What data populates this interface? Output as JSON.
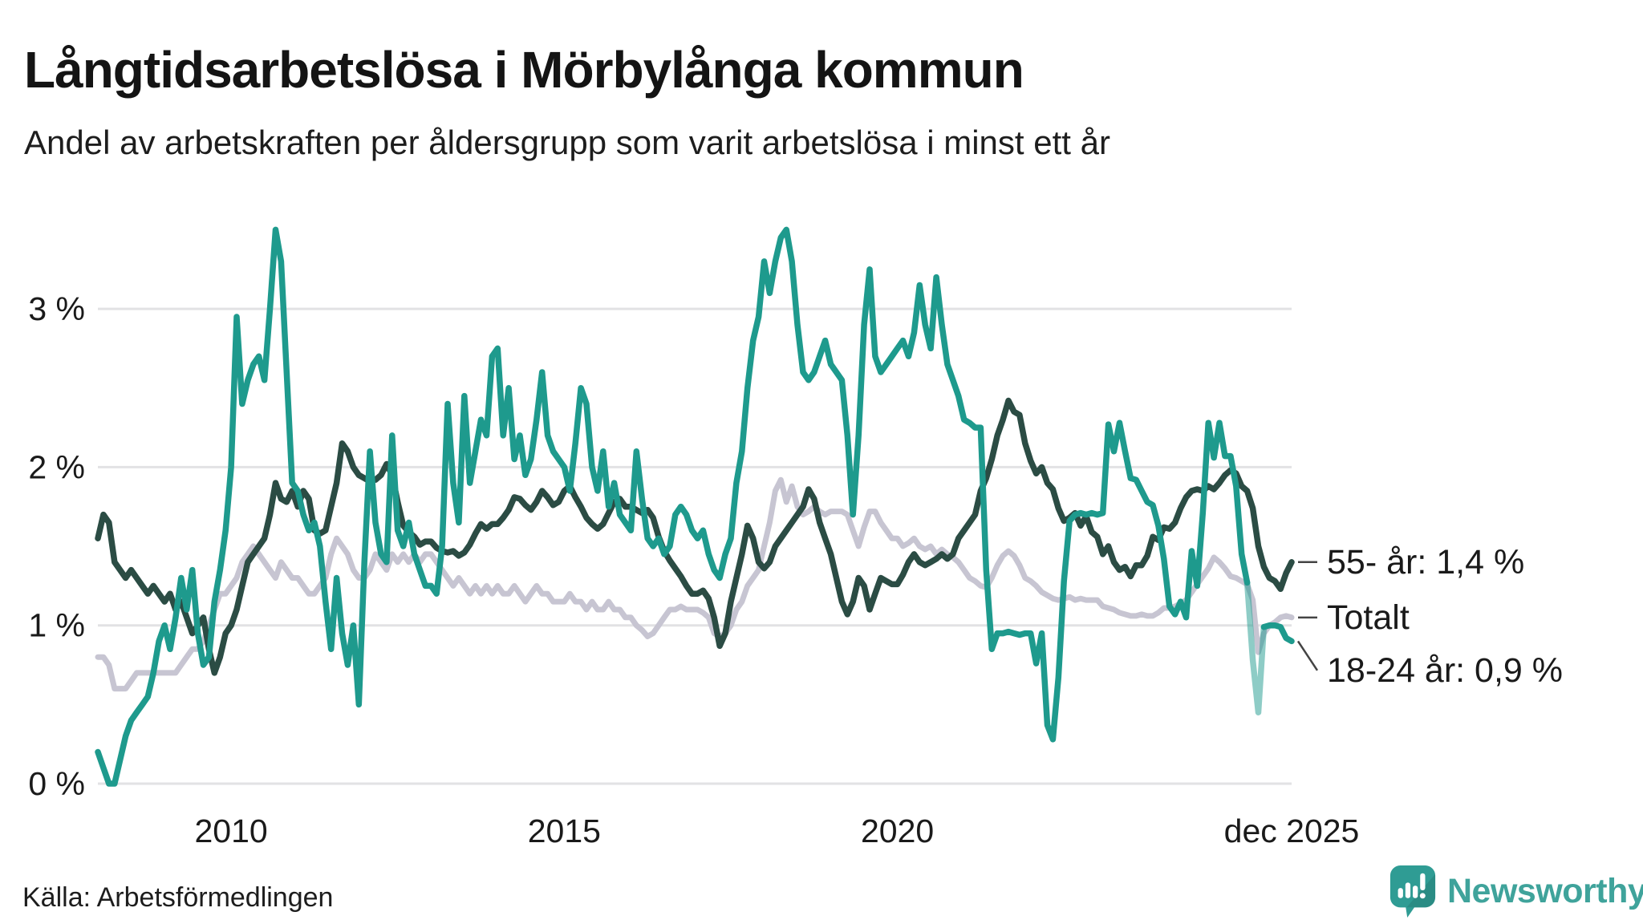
{
  "title": "Långtidsarbetslösa i Mörbylånga kommun",
  "subtitle": "Andel av arbetskraften per åldersgrupp som varit arbetslösa i minst ett år",
  "source": "Källa: Arbetsförmedlingen",
  "branding": {
    "name": "Newsworthy",
    "bubble_color": "#2f9c94",
    "text_color": "#3fa39b"
  },
  "chart_data": {
    "type": "line",
    "title": "Långtidsarbetslösa i Mörbylånga kommun",
    "subtitle": "Andel av arbetskraften per åldersgrupp som varit arbetslösa i minst ett år",
    "unit": "% av arbetskraften",
    "frequency": "monthly",
    "x_start": "2008-01",
    "x_end": "2025-12",
    "ylim": [
      0,
      3.7
    ],
    "grid": "horizontal",
    "colors": {
      "grid": "#e2e2e4",
      "axis_text": "#1a1a1a",
      "connector": "#444444"
    },
    "y_ticks": [
      {
        "value": 0,
        "label": "0 %"
      },
      {
        "value": 1,
        "label": "1 %"
      },
      {
        "value": 2,
        "label": "2 %"
      },
      {
        "value": 3,
        "label": "3 %"
      }
    ],
    "x_ticks": [
      {
        "month_index": 24,
        "label": "2010"
      },
      {
        "month_index": 84,
        "label": "2015"
      },
      {
        "month_index": 144,
        "label": "2020"
      },
      {
        "month_index": 215,
        "label": "dec 2025"
      }
    ],
    "series": [
      {
        "name": "Totalt",
        "end_label": "Totalt",
        "color": "#c7c5d2",
        "stroke_width": 7,
        "values": [
          0.8,
          0.8,
          0.75,
          0.6,
          0.6,
          0.6,
          0.65,
          0.7,
          0.7,
          0.7,
          0.7,
          0.7,
          0.7,
          0.7,
          0.7,
          0.75,
          0.8,
          0.85,
          0.85,
          0.9,
          1.0,
          1.1,
          1.2,
          1.2,
          1.25,
          1.3,
          1.4,
          1.45,
          1.5,
          1.45,
          1.4,
          1.35,
          1.3,
          1.4,
          1.35,
          1.3,
          1.3,
          1.25,
          1.2,
          1.2,
          1.25,
          1.3,
          1.45,
          1.55,
          1.5,
          1.45,
          1.35,
          1.3,
          1.3,
          1.35,
          1.45,
          1.4,
          1.35,
          1.45,
          1.4,
          1.45,
          1.4,
          1.45,
          1.4,
          1.45,
          1.45,
          1.4,
          1.35,
          1.3,
          1.25,
          1.3,
          1.25,
          1.2,
          1.25,
          1.2,
          1.25,
          1.2,
          1.25,
          1.2,
          1.2,
          1.25,
          1.2,
          1.15,
          1.2,
          1.25,
          1.2,
          1.2,
          1.15,
          1.15,
          1.15,
          1.2,
          1.15,
          1.15,
          1.1,
          1.15,
          1.1,
          1.1,
          1.15,
          1.1,
          1.1,
          1.05,
          1.05,
          1.0,
          0.97,
          0.93,
          0.95,
          1.0,
          1.05,
          1.1,
          1.1,
          1.12,
          1.1,
          1.1,
          1.1,
          1.08,
          1.05,
          0.95,
          0.93,
          0.95,
          1.0,
          1.1,
          1.15,
          1.25,
          1.3,
          1.35,
          1.5,
          1.65,
          1.85,
          1.92,
          1.78,
          1.88,
          1.75,
          1.7,
          1.72,
          1.75,
          1.72,
          1.7,
          1.72,
          1.72,
          1.72,
          1.7,
          1.6,
          1.5,
          1.62,
          1.72,
          1.72,
          1.65,
          1.6,
          1.55,
          1.55,
          1.5,
          1.52,
          1.55,
          1.5,
          1.48,
          1.5,
          1.45,
          1.48,
          1.45,
          1.43,
          1.4,
          1.35,
          1.3,
          1.28,
          1.25,
          1.24,
          1.3,
          1.38,
          1.44,
          1.47,
          1.44,
          1.38,
          1.3,
          1.28,
          1.25,
          1.21,
          1.19,
          1.17,
          1.16,
          1.17,
          1.18,
          1.16,
          1.17,
          1.16,
          1.16,
          1.16,
          1.12,
          1.11,
          1.1,
          1.08,
          1.07,
          1.06,
          1.06,
          1.07,
          1.06,
          1.06,
          1.08,
          1.11,
          1.11,
          1.12,
          1.14,
          1.16,
          1.21,
          1.26,
          1.31,
          1.36,
          1.43,
          1.4,
          1.36,
          1.31,
          1.3,
          1.28,
          1.26,
          1.16,
          0.83,
          0.95,
          1.0,
          1.02,
          1.05,
          1.06,
          1.05
        ]
      },
      {
        "name": "55- år",
        "end_label": "55- år: 1,4 %",
        "color": "#2b4c44",
        "stroke_width": 7.5,
        "values": [
          1.55,
          1.7,
          1.65,
          1.4,
          1.35,
          1.3,
          1.35,
          1.3,
          1.25,
          1.2,
          1.25,
          1.2,
          1.15,
          1.2,
          1.1,
          1.15,
          1.05,
          0.95,
          1.0,
          1.05,
          0.85,
          0.7,
          0.8,
          0.95,
          1.0,
          1.1,
          1.25,
          1.4,
          1.45,
          1.5,
          1.55,
          1.7,
          1.9,
          1.8,
          1.78,
          1.85,
          1.75,
          1.85,
          1.8,
          1.6,
          1.58,
          1.6,
          1.75,
          1.9,
          2.15,
          2.1,
          2.0,
          1.95,
          1.93,
          1.91,
          1.92,
          1.95,
          2.02,
          1.95,
          1.78,
          1.63,
          1.59,
          1.56,
          1.51,
          1.53,
          1.53,
          1.49,
          1.47,
          1.46,
          1.47,
          1.44,
          1.46,
          1.51,
          1.58,
          1.64,
          1.61,
          1.64,
          1.64,
          1.68,
          1.73,
          1.81,
          1.8,
          1.76,
          1.73,
          1.78,
          1.85,
          1.81,
          1.76,
          1.78,
          1.85,
          1.88,
          1.81,
          1.75,
          1.68,
          1.64,
          1.61,
          1.64,
          1.71,
          1.78,
          1.8,
          1.75,
          1.75,
          1.73,
          1.71,
          1.73,
          1.68,
          1.56,
          1.47,
          1.41,
          1.36,
          1.31,
          1.25,
          1.2,
          1.2,
          1.22,
          1.17,
          1.05,
          0.87,
          0.95,
          1.15,
          1.3,
          1.45,
          1.63,
          1.55,
          1.4,
          1.36,
          1.4,
          1.5,
          1.55,
          1.6,
          1.65,
          1.7,
          1.75,
          1.86,
          1.8,
          1.65,
          1.55,
          1.45,
          1.3,
          1.15,
          1.07,
          1.15,
          1.3,
          1.25,
          1.1,
          1.2,
          1.3,
          1.28,
          1.26,
          1.26,
          1.32,
          1.4,
          1.45,
          1.4,
          1.38,
          1.4,
          1.42,
          1.45,
          1.42,
          1.45,
          1.55,
          1.6,
          1.65,
          1.7,
          1.85,
          1.93,
          2.05,
          2.2,
          2.3,
          2.42,
          2.35,
          2.33,
          2.15,
          2.04,
          1.96,
          2.0,
          1.9,
          1.86,
          1.74,
          1.66,
          1.68,
          1.71,
          1.63,
          1.69,
          1.59,
          1.56,
          1.45,
          1.5,
          1.4,
          1.35,
          1.37,
          1.31,
          1.38,
          1.38,
          1.44,
          1.56,
          1.54,
          1.62,
          1.61,
          1.65,
          1.74,
          1.81,
          1.85,
          1.86,
          1.85,
          1.88,
          1.86,
          1.9,
          1.95,
          1.98,
          1.96,
          1.88,
          1.85,
          1.74,
          1.5,
          1.37,
          1.3,
          1.28,
          1.23,
          1.33,
          1.4
        ]
      },
      {
        "name": "18-24 år",
        "end_label": "18-24 år: 0,9 %",
        "color": "#1e9a8d",
        "stroke_width": 7.5,
        "segments": [
          {
            "from": 0,
            "to": 207,
            "opacity": 1
          },
          {
            "from": 207,
            "to": 210,
            "opacity": 0.5
          },
          {
            "from": 210,
            "to": 215,
            "opacity": 1
          }
        ],
        "values": [
          0.2,
          0.1,
          0.0,
          0.0,
          0.15,
          0.3,
          0.4,
          0.45,
          0.5,
          0.55,
          0.7,
          0.9,
          1.0,
          0.85,
          1.05,
          1.3,
          1.1,
          1.35,
          0.95,
          0.75,
          0.8,
          1.15,
          1.35,
          1.6,
          2.0,
          2.95,
          2.4,
          2.55,
          2.65,
          2.7,
          2.55,
          3.0,
          3.5,
          3.3,
          2.6,
          1.9,
          1.85,
          1.7,
          1.6,
          1.65,
          1.5,
          1.15,
          0.85,
          1.3,
          0.95,
          0.75,
          1.0,
          0.5,
          1.4,
          2.1,
          1.65,
          1.45,
          1.4,
          2.2,
          1.6,
          1.5,
          1.65,
          1.45,
          1.35,
          1.25,
          1.25,
          1.2,
          1.5,
          2.4,
          1.9,
          1.65,
          2.45,
          1.9,
          2.1,
          2.3,
          2.2,
          2.7,
          2.75,
          2.2,
          2.5,
          2.05,
          2.2,
          1.95,
          2.05,
          2.3,
          2.6,
          2.2,
          2.1,
          2.05,
          2.0,
          1.85,
          2.15,
          2.5,
          2.4,
          2.0,
          1.85,
          2.1,
          1.75,
          1.9,
          1.7,
          1.65,
          1.6,
          2.1,
          1.8,
          1.55,
          1.5,
          1.55,
          1.45,
          1.5,
          1.7,
          1.75,
          1.7,
          1.6,
          1.55,
          1.6,
          1.45,
          1.35,
          1.3,
          1.45,
          1.55,
          1.9,
          2.1,
          2.5,
          2.8,
          2.95,
          3.3,
          3.1,
          3.3,
          3.45,
          3.5,
          3.3,
          2.9,
          2.6,
          2.55,
          2.6,
          2.7,
          2.8,
          2.65,
          2.6,
          2.55,
          2.2,
          1.7,
          2.2,
          2.9,
          3.25,
          2.7,
          2.6,
          2.65,
          2.7,
          2.75,
          2.8,
          2.7,
          2.85,
          3.15,
          2.9,
          2.75,
          3.2,
          2.9,
          2.65,
          2.55,
          2.45,
          2.3,
          2.28,
          2.25,
          2.25,
          1.35,
          0.85,
          0.95,
          0.95,
          0.96,
          0.95,
          0.94,
          0.95,
          0.95,
          0.76,
          0.95,
          0.37,
          0.28,
          0.67,
          1.28,
          1.66,
          1.7,
          1.71,
          1.7,
          1.71,
          1.7,
          1.71,
          2.27,
          2.1,
          2.28,
          2.1,
          1.93,
          1.92,
          1.85,
          1.78,
          1.76,
          1.63,
          1.42,
          1.12,
          1.07,
          1.15,
          1.05,
          1.47,
          1.25,
          1.71,
          2.28,
          2.06,
          2.28,
          2.07,
          2.07,
          1.88,
          1.45,
          1.27,
          0.78,
          0.45,
          0.99,
          1.0,
          1.0,
          0.99,
          0.92,
          0.9
        ]
      }
    ]
  }
}
